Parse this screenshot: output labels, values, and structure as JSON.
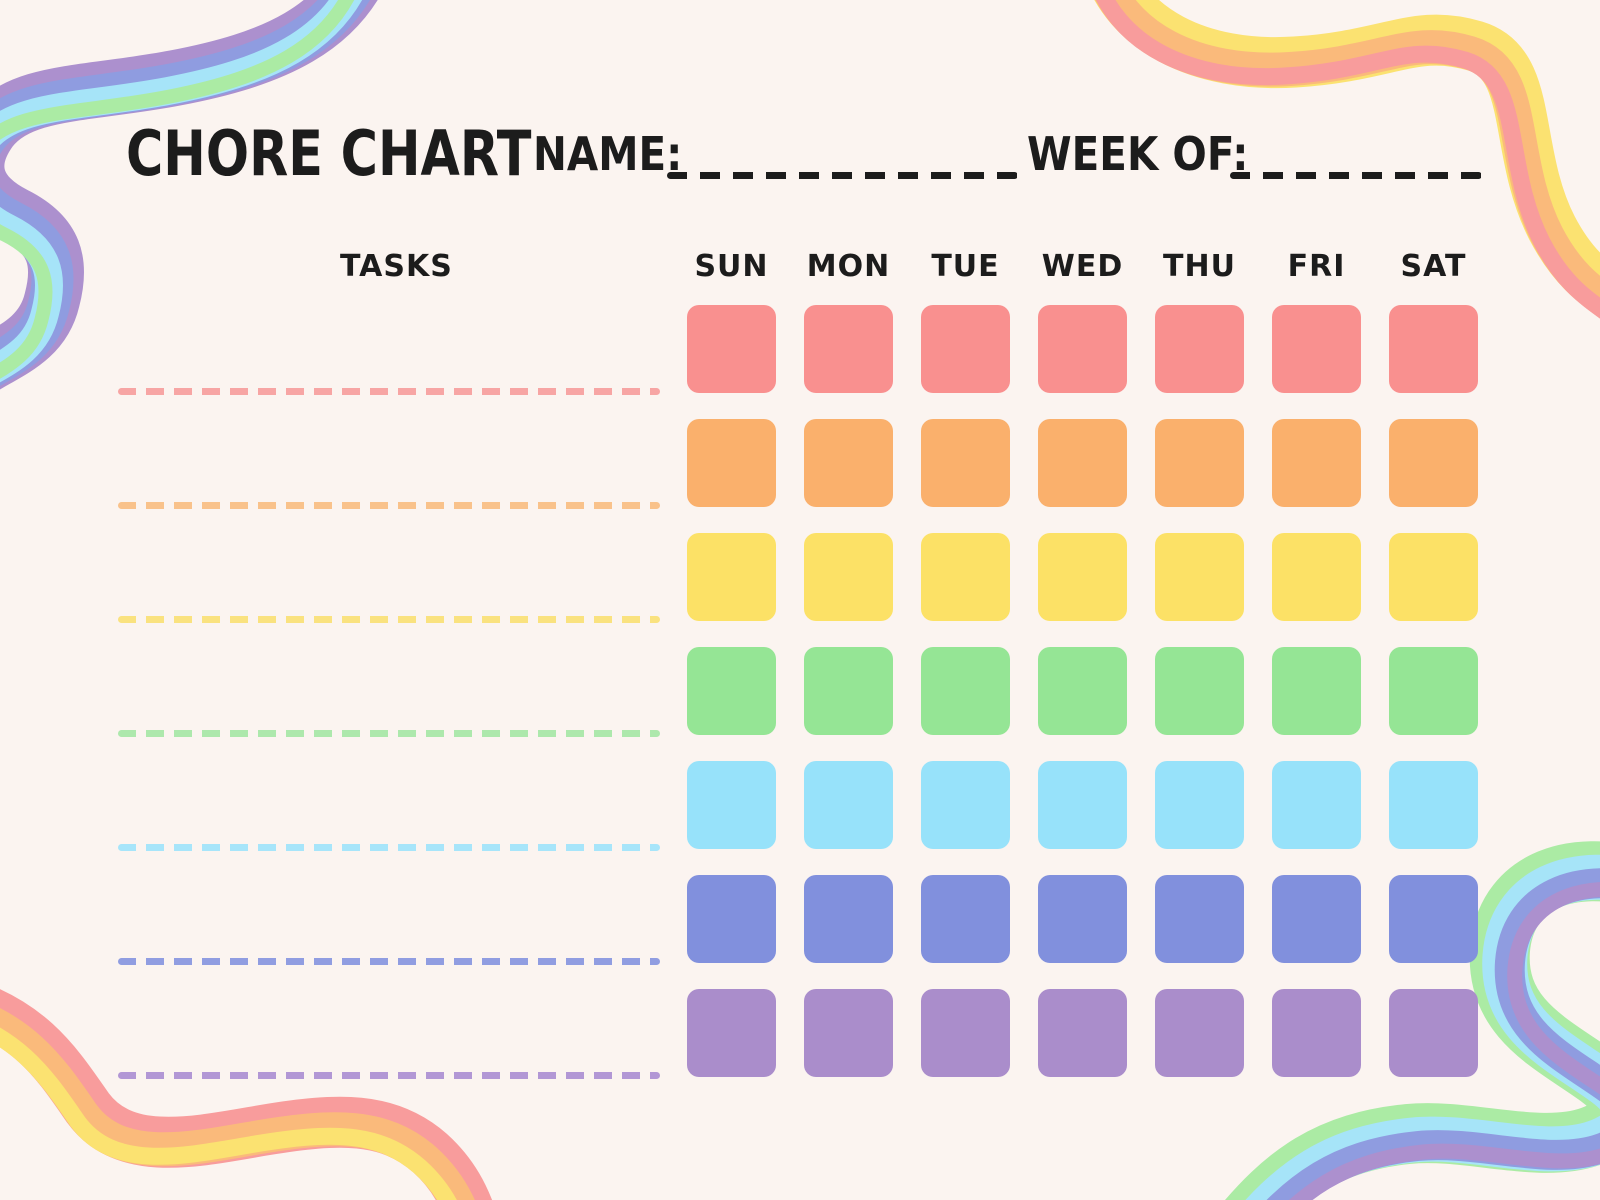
{
  "page": {
    "background_color": "#FBF4F0",
    "text_color": "#1C1C1C"
  },
  "header": {
    "title": "CHORE CHART",
    "name_label": "NAME:",
    "name_value": "",
    "week_of_label": "WEEK OF:",
    "week_of_value": ""
  },
  "table": {
    "tasks_header": "TASKS",
    "days": [
      "SUN",
      "MON",
      "TUE",
      "WED",
      "THU",
      "FRI",
      "SAT"
    ],
    "rows": [
      {
        "task_value": "",
        "cell_color": "#F9908F",
        "line_color": "#F7A5A4"
      },
      {
        "task_value": "",
        "cell_color": "#FAB06C",
        "line_color": "#F9C28B"
      },
      {
        "task_value": "",
        "cell_color": "#FCE166",
        "line_color": "#FAE27F"
      },
      {
        "task_value": "",
        "cell_color": "#95E595",
        "line_color": "#ADE8AC"
      },
      {
        "task_value": "",
        "cell_color": "#97E2FA",
        "line_color": "#A7E5FA"
      },
      {
        "task_value": "",
        "cell_color": "#8190DD",
        "line_color": "#909DE1"
      },
      {
        "task_value": "",
        "cell_color": "#AA8DCB",
        "line_color": "#B297D5"
      }
    ]
  },
  "decorations": {
    "ribbon_colors": {
      "pink": "#F89C9C",
      "orange": "#FABA7B",
      "yellow": "#FBE271",
      "green": "#ABEBA4",
      "cyan": "#A6E4F8",
      "periwinkle": "#8F9CE0",
      "purple": "#AC90CE"
    }
  }
}
